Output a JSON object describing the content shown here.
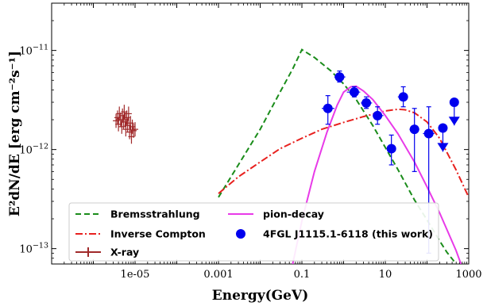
{
  "chart_data": {
    "type": "scatter",
    "xlabel": "Energy(GeV)",
    "ylabel": "E²dN/dE [erg cm⁻²s⁻¹]",
    "xscale": "log",
    "yscale": "log",
    "xlim": [
      1e-07,
      1000
    ],
    "ylim": [
      7e-14,
      3e-11
    ],
    "x_ticks": [
      {
        "value": 1e-05,
        "label": "1e-05"
      },
      {
        "value": 0.001,
        "label": "0.001"
      },
      {
        "value": 0.1,
        "label": "0.1"
      },
      {
        "value": 10,
        "label": "10"
      },
      {
        "value": 1000,
        "label": "1000"
      }
    ],
    "y_ticks": [
      {
        "value": 1e-13,
        "base": "10",
        "exp": "−13"
      },
      {
        "value": 1e-12,
        "base": "10",
        "exp": "−12"
      },
      {
        "value": 1e-11,
        "base": "10",
        "exp": "−11"
      }
    ],
    "legend_position": "bottom-left",
    "series": [
      {
        "name": "Bremsstrahlung",
        "style": "dashed",
        "color": "#1a8c1a",
        "points": [
          [
            0.001,
            3.3e-13
          ],
          [
            0.003,
            7e-13
          ],
          [
            0.01,
            1.6e-12
          ],
          [
            0.03,
            3.8e-12
          ],
          [
            0.06,
            6.5e-12
          ],
          [
            0.1,
            1.02e-11
          ],
          [
            0.2,
            8.5e-12
          ],
          [
            0.5,
            6.2e-12
          ],
          [
            1,
            4.6e-12
          ],
          [
            2,
            3.2e-12
          ],
          [
            5,
            1.75e-12
          ],
          [
            10,
            1.05e-12
          ],
          [
            20,
            6.3e-13
          ],
          [
            50,
            3.1e-13
          ],
          [
            100,
            1.95e-13
          ],
          [
            200,
            1.2e-13
          ],
          [
            300,
            9.2e-14
          ],
          [
            500,
            7e-14
          ]
        ]
      },
      {
        "name": "Inverse Compton",
        "style": "dashdot",
        "color": "#e8201e",
        "points": [
          [
            0.001,
            3.6e-13
          ],
          [
            0.003,
            5.3e-13
          ],
          [
            0.01,
            7.5e-13
          ],
          [
            0.03,
            1.02e-12
          ],
          [
            0.1,
            1.3e-12
          ],
          [
            0.3,
            1.6e-12
          ],
          [
            1,
            1.88e-12
          ],
          [
            3,
            2.15e-12
          ],
          [
            10,
            2.45e-12
          ],
          [
            20,
            2.55e-12
          ],
          [
            30,
            2.52e-12
          ],
          [
            50,
            2.35e-12
          ],
          [
            100,
            1.9e-12
          ],
          [
            200,
            1.3e-12
          ],
          [
            500,
            6.2e-13
          ],
          [
            1000,
            3.3e-13
          ]
        ]
      },
      {
        "name": "pion-decay",
        "style": "solid",
        "color": "#e83ae8",
        "points": [
          [
            0.06,
            7e-14
          ],
          [
            0.1,
            1.9e-13
          ],
          [
            0.2,
            6e-13
          ],
          [
            0.4,
            1.5e-12
          ],
          [
            0.7,
            2.8e-12
          ],
          [
            1,
            3.8e-12
          ],
          [
            1.5,
            4.3e-12
          ],
          [
            2,
            4.35e-12
          ],
          [
            3,
            3.9e-12
          ],
          [
            5,
            3.2e-12
          ],
          [
            10,
            2.2e-12
          ],
          [
            20,
            1.45e-12
          ],
          [
            50,
            7.5e-13
          ],
          [
            100,
            4.2e-13
          ],
          [
            200,
            2.3e-13
          ],
          [
            500,
            9.5e-14
          ],
          [
            650,
            7e-14
          ]
        ]
      },
      {
        "name": "4FGL J1115.1-6118 (this work)",
        "style": "markers",
        "color": "#0000ee",
        "points": [
          {
            "x": 0.42,
            "y": 2.6e-12,
            "xlo": 0.3,
            "xhi": 0.6,
            "ylo": 1.8e-12,
            "yhi": 3.5e-12
          },
          {
            "x": 0.8,
            "y": 5.4e-12,
            "xlo": 0.6,
            "xhi": 1.1,
            "ylo": 4.8e-12,
            "yhi": 6.2e-12
          },
          {
            "x": 1.8,
            "y": 3.8e-12,
            "xlo": 1.2,
            "xhi": 2.5,
            "ylo": 3.4e-12,
            "yhi": 4.3e-12
          },
          {
            "x": 3.5,
            "y": 2.95e-12,
            "xlo": 2.6,
            "xhi": 4.8,
            "ylo": 2.6e-12,
            "yhi": 3.4e-12
          },
          {
            "x": 6.5,
            "y": 2.2e-12,
            "xlo": 5,
            "xhi": 9,
            "ylo": 1.8e-12,
            "yhi": 2.7e-12
          },
          {
            "x": 14,
            "y": 1.02e-12,
            "xlo": 11,
            "xhi": 18,
            "ylo": 7e-13,
            "yhi": 1.4e-12
          },
          {
            "x": 27,
            "y": 3.4e-12,
            "xlo": 20,
            "xhi": 35,
            "ylo": 2.7e-12,
            "yhi": 4.3e-12
          },
          {
            "x": 50,
            "y": 1.6e-12,
            "xlo": 38,
            "xhi": 65,
            "ylo": 6e-13,
            "yhi": 2.6e-12
          },
          {
            "x": 110,
            "y": 1.45e-12,
            "xlo": 80,
            "xhi": 150,
            "ylo": 9e-14,
            "yhi": 2.7e-12
          },
          {
            "x": 240,
            "y": 1.65e-12,
            "upper_limit_at": 9.5e-13,
            "xlo": 190,
            "xhi": 300,
            "ylo": 9.5e-13,
            "yhi": 1.65e-12
          },
          {
            "x": 450,
            "y": 3e-12,
            "upper_limit_at": 1.75e-12,
            "xlo": 380,
            "xhi": 560,
            "ylo": 1.75e-12,
            "yhi": 3e-12
          }
        ]
      },
      {
        "name": "X-ray",
        "style": "errorbars",
        "color": "#a0292a",
        "points": [
          [
            3.5e-06,
            1.95e-12
          ],
          [
            3.8e-06,
            2.1e-12
          ],
          [
            4e-06,
            1.8e-12
          ],
          [
            4.2e-06,
            2.3e-12
          ],
          [
            4.5e-06,
            2e-12
          ],
          [
            4.8e-06,
            1.7e-12
          ],
          [
            5e-06,
            2.2e-12
          ],
          [
            5.3e-06,
            1.9e-12
          ],
          [
            5.5e-06,
            2.4e-12
          ],
          [
            5.8e-06,
            2e-12
          ],
          [
            6e-06,
            1.6e-12
          ],
          [
            6.3e-06,
            2.1e-12
          ],
          [
            6.6e-06,
            1.75e-12
          ],
          [
            7e-06,
            2.3e-12
          ],
          [
            7.4e-06,
            1.5e-12
          ],
          [
            7.8e-06,
            1.85e-12
          ],
          [
            8.2e-06,
            1.35e-12
          ],
          [
            8.6e-06,
            1.7e-12
          ],
          [
            9.2e-06,
            1.55e-12
          ],
          [
            1e-05,
            1.6e-12
          ]
        ]
      }
    ]
  }
}
